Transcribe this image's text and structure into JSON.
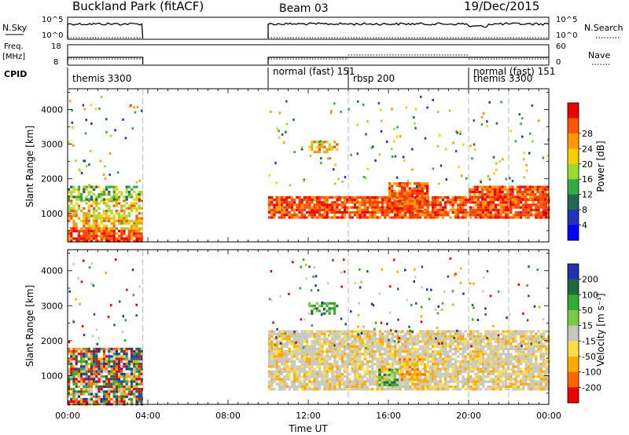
{
  "header": {
    "station": "Buckland Park (fitACF)",
    "beam": "Beam 03",
    "date": "19/Dec/2015"
  },
  "left_labels": {
    "nsky": "N.Sky",
    "freq_line1": "Freq.",
    "freq_line2": "[MHz]",
    "cpid": "CPID"
  },
  "right_labels": {
    "nsearch": "N.Search",
    "nave": "Nave"
  },
  "strip_ticks": {
    "nsky_top": "10^5",
    "nsky_bottom": "10^0",
    "freq_top": "18",
    "freq_bottom": "8",
    "nave_top": "60",
    "nave_bottom": "0"
  },
  "cpid_segments": [
    {
      "label": "themis 3300",
      "start_h": 0.0,
      "end_h": 3.75
    },
    {
      "label": "normal (fast) 151",
      "start_h": 10.0,
      "end_h": 14.0
    },
    {
      "label": "rbsp 200",
      "start_h": 14.0,
      "end_h": 20.0
    },
    {
      "label": "themis 3300",
      "start_h": 20.0,
      "end_h": 22.0
    },
    {
      "label": "normal (fast) 151",
      "start_h": 20.0,
      "end_h": 24.0
    }
  ],
  "chart_data": [
    {
      "type": "heatmap",
      "title": "Power",
      "xlabel": "",
      "ylabel": "Slant Range [km]",
      "x_ticks": [
        "00:00",
        "04:00",
        "08:00",
        "12:00",
        "16:00",
        "20:00",
        "00:00"
      ],
      "xlim_hours": [
        0,
        24
      ],
      "ylim_km": [
        180,
        4600
      ],
      "y_ticks": [
        1000,
        2000,
        3000,
        4000
      ],
      "colorbar": {
        "label": "Power [dB]",
        "ticks": [
          4,
          8,
          12,
          16,
          20,
          24,
          28
        ],
        "range": [
          0,
          30
        ],
        "colors": [
          "#0000ff",
          "#2233bb",
          "#226655",
          "#33aa44",
          "#99dd33",
          "#ffcc00",
          "#ff9900",
          "#ff5500",
          "#ee0000"
        ]
      },
      "data_gaps_hours": [
        [
          3.75,
          10.0
        ]
      ],
      "echo_regions": [
        {
          "t0": 0.0,
          "t1": 3.7,
          "r0": 200,
          "r1": 600,
          "level": "high"
        },
        {
          "t0": 0.0,
          "t1": 3.7,
          "r0": 600,
          "r1": 1400,
          "level": "medium"
        },
        {
          "t0": 0.0,
          "t1": 3.7,
          "r0": 1400,
          "r1": 1800,
          "level": "low"
        },
        {
          "t0": 10.0,
          "t1": 24.0,
          "r0": 900,
          "r1": 1500,
          "level": "high"
        },
        {
          "t0": 12.0,
          "t1": 13.5,
          "r0": 2800,
          "r1": 3100,
          "level": "medium"
        },
        {
          "t0": 16.0,
          "t1": 18.0,
          "r0": 1100,
          "r1": 1900,
          "level": "high"
        },
        {
          "t0": 20.0,
          "t1": 24.0,
          "r0": 1400,
          "r1": 1800,
          "level": "high"
        }
      ]
    },
    {
      "type": "heatmap",
      "title": "Velocity",
      "xlabel": "Time UT",
      "ylabel": "Slant Range [km]",
      "x_ticks": [
        "00:00",
        "04:00",
        "08:00",
        "12:00",
        "16:00",
        "20:00",
        "00:00"
      ],
      "xlim_hours": [
        0,
        24
      ],
      "ylim_km": [
        180,
        4600
      ],
      "y_ticks": [
        1000,
        2000,
        3000,
        4000
      ],
      "colorbar": {
        "label": "Velocity [m s⁻¹]",
        "ticks": [
          200,
          100,
          50,
          15,
          -15,
          -50,
          -100,
          -200
        ],
        "range": [
          -250,
          250
        ],
        "colors": [
          "#2233aa",
          "#226644",
          "#33aa33",
          "#77cc44",
          "#c8c8c0",
          "#ffdd44",
          "#ffaa00",
          "#ff6600",
          "#ee0000"
        ]
      },
      "data_gaps_hours": [
        [
          3.75,
          10.0
        ]
      ],
      "echo_regions": [
        {
          "t0": 0.0,
          "t1": 3.7,
          "r0": 200,
          "r1": 1800,
          "level": "mixed"
        },
        {
          "t0": 10.0,
          "t1": 24.0,
          "r0": 600,
          "r1": 2300,
          "level": "ground"
        },
        {
          "t0": 16.5,
          "t1": 17.8,
          "r0": 900,
          "r1": 1500,
          "level": "negative"
        },
        {
          "t0": 15.5,
          "t1": 16.5,
          "r0": 700,
          "r1": 1200,
          "level": "positive"
        },
        {
          "t0": 12.0,
          "t1": 13.5,
          "r0": 2800,
          "r1": 3100,
          "level": "positive"
        }
      ]
    }
  ]
}
